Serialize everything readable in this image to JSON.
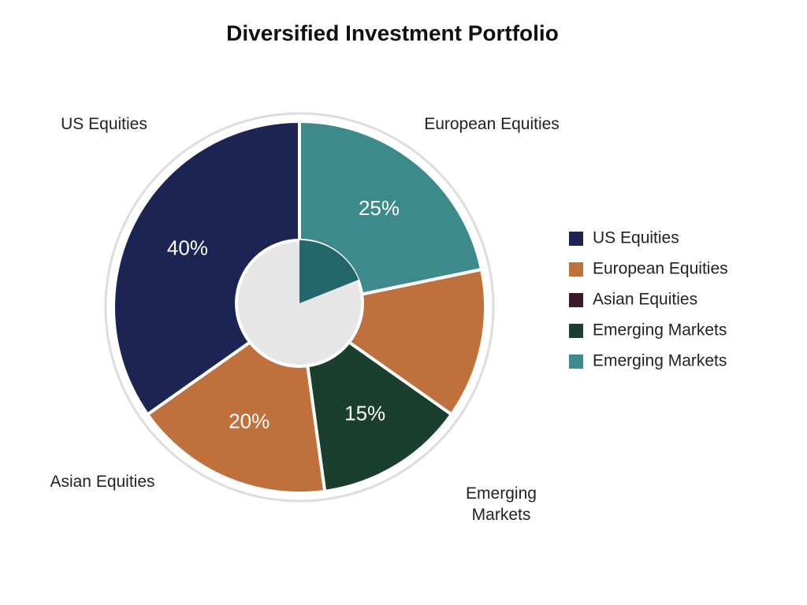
{
  "chart_data": {
    "type": "pie",
    "title": "Diversified Investment Portfolio",
    "categories": [
      "European Equities",
      null,
      "Emerging Markets",
      "Asian Equities",
      "US Equities"
    ],
    "values": [
      25,
      15,
      15,
      20,
      40
    ],
    "value_labels": [
      "25%",
      null,
      "15%",
      "20%",
      "40%"
    ],
    "colors": [
      "#3d8a8c",
      "#c0703a",
      "#1b3f2e",
      "#c0703a",
      "#1c2454"
    ],
    "legend": {
      "position": "right",
      "entries": [
        {
          "name": "US Equities",
          "color": "#1c2454"
        },
        {
          "name": "European Equities",
          "color": "#c0703a"
        },
        {
          "name": "Asian Equities",
          "color": "#3a1a2a"
        },
        {
          "name": "Emerging Markets",
          "color": "#1b3f2e"
        },
        {
          "name": "Emerging Markets",
          "color": "#3d8a8c"
        }
      ]
    }
  }
}
